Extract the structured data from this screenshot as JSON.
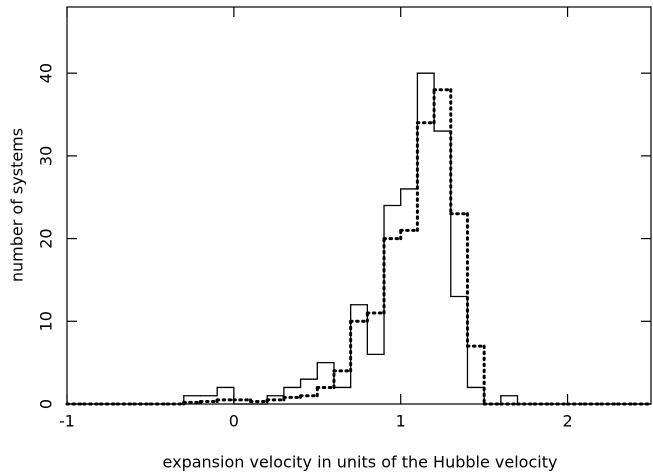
{
  "chart_data": {
    "type": "histogram",
    "x_label": "expansion velocity in units of the Hubble velocity",
    "y_label": "number of systems",
    "bins": [
      -1.0,
      -0.9,
      -0.8,
      -0.7,
      -0.6,
      -0.5,
      -0.4,
      -0.3,
      -0.2,
      -0.1,
      0.0,
      0.1,
      0.2,
      0.3,
      0.4,
      0.5,
      0.6,
      0.7,
      0.8,
      0.9,
      1.0,
      1.1,
      1.2,
      1.3,
      1.4,
      1.5,
      1.6,
      1.7,
      1.8,
      1.9,
      2.0,
      2.1,
      2.2,
      2.3,
      2.4,
      2.5
    ],
    "series": [
      {
        "color": "#000000",
        "style": "solid",
        "values": [
          0,
          0,
          0,
          0,
          0,
          0,
          0,
          1,
          1,
          2,
          0,
          0,
          1,
          2,
          3,
          5,
          2,
          12,
          6,
          24,
          26,
          40,
          33,
          13,
          2,
          0,
          1,
          0,
          0,
          0,
          0,
          0,
          0,
          0,
          0
        ]
      },
      {
        "color": "#000000",
        "style": "dotted",
        "values": [
          0,
          0,
          0,
          0,
          0,
          0,
          0,
          0.2,
          0.3,
          0.5,
          0.5,
          0.3,
          0.5,
          0.8,
          1,
          2,
          4,
          10,
          11,
          20,
          21,
          34,
          38,
          23,
          7,
          0,
          0,
          0,
          0,
          0,
          0,
          0,
          0,
          0,
          0
        ]
      }
    ],
    "xlim": [
      -1,
      2.5
    ],
    "ylim": [
      0,
      48
    ],
    "xticks": [
      -1,
      0,
      1,
      2
    ],
    "yticks": [
      0,
      10,
      20,
      30,
      40
    ]
  }
}
